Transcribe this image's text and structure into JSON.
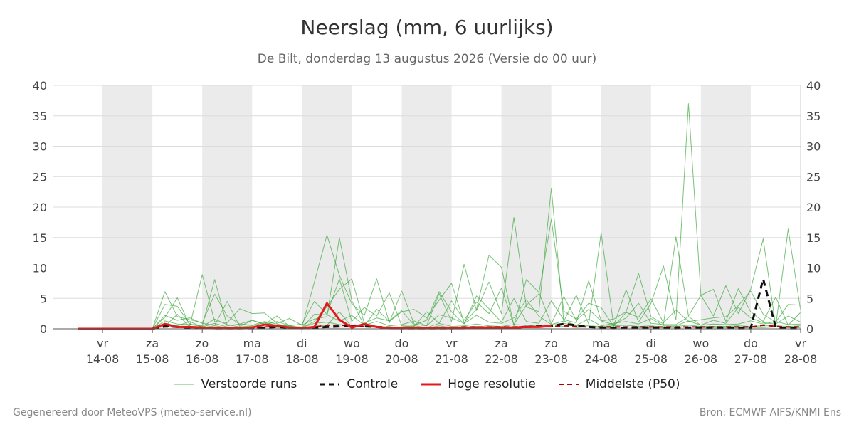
{
  "header": {
    "title": "Neerslag (mm, 6 uurlijks)",
    "subtitle": "De Bilt, donderdag 13 augustus 2026 (Versie do 00 uur)"
  },
  "footer": {
    "left": "Gegenereerd door MeteoVPS (meteo-service.nl)",
    "right": "Bron: ECMWF AIFS/KNMI Ens"
  },
  "legend": {
    "ensemble": "Verstoorde runs",
    "control": "Controle",
    "hires": "Hoge resolutie",
    "median": "Middelste (P50)"
  },
  "colors": {
    "ensemble": "#3fa83f",
    "control": "#111111",
    "hires": "#e31a1c",
    "median": "#b30000",
    "weekend_band": "#ebebeb",
    "grid": "#dcdcdc"
  },
  "chart_data": {
    "type": "line",
    "ylim": [
      0,
      40
    ],
    "yticks": [
      0,
      5,
      10,
      15,
      20,
      25,
      30,
      35,
      40
    ],
    "xlim": [
      "2026-08-13T00",
      "2026-08-28T00"
    ],
    "x_ticks": [
      {
        "day": "vr",
        "date": "14-08"
      },
      {
        "day": "za",
        "date": "15-08"
      },
      {
        "day": "zo",
        "date": "16-08"
      },
      {
        "day": "ma",
        "date": "17-08"
      },
      {
        "day": "di",
        "date": "18-08"
      },
      {
        "day": "wo",
        "date": "19-08"
      },
      {
        "day": "do",
        "date": "20-08"
      },
      {
        "day": "vr",
        "date": "21-08"
      },
      {
        "day": "za",
        "date": "22-08"
      },
      {
        "day": "zo",
        "date": "23-08"
      },
      {
        "day": "ma",
        "date": "24-08"
      },
      {
        "day": "di",
        "date": "25-08"
      },
      {
        "day": "wo",
        "date": "26-08"
      },
      {
        "day": "do",
        "date": "27-08"
      },
      {
        "day": "vr",
        "date": "28-08"
      }
    ],
    "weekend_bands": [
      [
        "2026-08-14T00",
        "2026-08-15T00"
      ],
      [
        "2026-08-16T00",
        "2026-08-17T00"
      ],
      [
        "2026-08-18T00",
        "2026-08-19T00"
      ],
      [
        "2026-08-20T00",
        "2026-08-21T00"
      ],
      [
        "2026-08-22T00",
        "2026-08-23T00"
      ],
      [
        "2026-08-24T00",
        "2026-08-25T00"
      ],
      [
        "2026-08-26T00",
        "2026-08-27T00"
      ]
    ],
    "x": [
      "2026-08-13T12",
      "2026-08-13T18",
      "2026-08-14T00",
      "2026-08-14T06",
      "2026-08-14T12",
      "2026-08-14T18",
      "2026-08-15T00",
      "2026-08-15T06",
      "2026-08-15T12",
      "2026-08-15T18",
      "2026-08-16T00",
      "2026-08-16T06",
      "2026-08-16T12",
      "2026-08-16T18",
      "2026-08-17T00",
      "2026-08-17T06",
      "2026-08-17T12",
      "2026-08-17T18",
      "2026-08-18T00",
      "2026-08-18T06",
      "2026-08-18T12",
      "2026-08-18T18",
      "2026-08-19T00",
      "2026-08-19T06",
      "2026-08-19T12",
      "2026-08-19T18",
      "2026-08-20T00",
      "2026-08-20T06",
      "2026-08-20T12",
      "2026-08-20T18",
      "2026-08-21T00",
      "2026-08-21T06",
      "2026-08-21T12",
      "2026-08-21T18",
      "2026-08-22T00",
      "2026-08-22T06",
      "2026-08-22T12",
      "2026-08-22T18",
      "2026-08-23T00",
      "2026-08-23T06",
      "2026-08-23T12",
      "2026-08-23T18",
      "2026-08-24T00",
      "2026-08-24T06",
      "2026-08-24T12",
      "2026-08-24T18",
      "2026-08-25T00",
      "2026-08-25T06",
      "2026-08-25T12",
      "2026-08-25T18",
      "2026-08-26T00",
      "2026-08-26T06",
      "2026-08-26T12",
      "2026-08-26T18",
      "2026-08-27T00",
      "2026-08-27T06",
      "2026-08-27T12",
      "2026-08-27T18",
      "2026-08-28T00"
    ],
    "series": [
      {
        "name": "Controle",
        "values": [
          0,
          0,
          0,
          0,
          0,
          0,
          0,
          0.5,
          0.3,
          0.2,
          0.2,
          0.1,
          0.1,
          0.1,
          0.1,
          0.2,
          0.3,
          0.2,
          0.1,
          0.2,
          0.3,
          0.4,
          0.6,
          0.4,
          0.3,
          0.2,
          0.1,
          0.1,
          0.1,
          0.1,
          0.1,
          0.2,
          0.2,
          0.2,
          0.2,
          0.2,
          0.3,
          0.4,
          0.5,
          0.8,
          0.6,
          0.3,
          0.2,
          0.1,
          0.2,
          0.2,
          0.2,
          0.2,
          0.1,
          0.2,
          0.2,
          0.2,
          0.2,
          0.1,
          0.1,
          8.2,
          0.2,
          0.1,
          0.1
        ]
      },
      {
        "name": "Hoge resolutie",
        "values": [
          0,
          0,
          0,
          0,
          0,
          0,
          0,
          0.8,
          0.3,
          0.3,
          0.2,
          0.1,
          0.1,
          0.1,
          0.2,
          0.7,
          0.5,
          0.2,
          0.1,
          0.3,
          4.2,
          1.5,
          0.2,
          0.8,
          0.3,
          0.1,
          0.1,
          0.1,
          0.1,
          0.1,
          0.1,
          0.1,
          0.2,
          0.2,
          0.2,
          0.2,
          0.3,
          0.3,
          0.5,
          null,
          null,
          null,
          null,
          null,
          null,
          null,
          null,
          null,
          null,
          null,
          null,
          null,
          null,
          null,
          null,
          null,
          null,
          null,
          null
        ]
      },
      {
        "name": "Middelste (P50)",
        "values": [
          0,
          0,
          0,
          0,
          0,
          0,
          0,
          0.3,
          0.3,
          0.2,
          0.2,
          0.1,
          0.1,
          0.1,
          0.1,
          0.3,
          0.4,
          0.2,
          0.1,
          0.3,
          0.6,
          0.6,
          0.5,
          0.4,
          0.3,
          0.2,
          0.2,
          0.2,
          0.2,
          0.2,
          0.2,
          0.3,
          0.3,
          0.3,
          0.3,
          0.3,
          0.4,
          0.4,
          0.4,
          0.5,
          0.4,
          0.3,
          0.3,
          0.3,
          0.3,
          0.3,
          0.3,
          0.3,
          0.3,
          0.3,
          0.3,
          0.3,
          0.3,
          0.3,
          0.3,
          0.6,
          0.4,
          0.3,
          0.3
        ]
      },
      {
        "name": "Verstoorde runs",
        "values": [
          0,
          0,
          0,
          0,
          0,
          0,
          0,
          6.1,
          2.0,
          1.5,
          1.0,
          5.7,
          2.1,
          0.8,
          0.6,
          1.2,
          0.8,
          0.4,
          0.3,
          7.7,
          15.4,
          8.8,
          4.1,
          2.2,
          8.2,
          1.0,
          6.2,
          0.8,
          0.5,
          5.8,
          1.2,
          10.6,
          3.0,
          7.7,
          2.5,
          18.3,
          3.6,
          2.8,
          23.1,
          1.2,
          5.5,
          0.8,
          15.8,
          0.5,
          6.4,
          1.1,
          4.2,
          10.3,
          1.5,
          37.0,
          5.5,
          2.1,
          7.1,
          2.5,
          6.5,
          14.8,
          0.4,
          16.4,
          3.0
        ]
      },
      {
        "values": [
          0,
          0,
          0,
          0,
          0,
          0,
          0,
          1.9,
          5.1,
          0.5,
          8.9,
          1.2,
          1.0,
          3.3,
          2.5,
          2.6,
          0.9,
          1.7,
          0.6,
          1.6,
          2.0,
          15.0,
          4.6,
          0.5,
          3.2,
          1.2,
          2.8,
          3.2,
          1.8,
          4.7,
          7.5,
          1.0,
          3.2,
          12.1,
          10.1,
          0.5,
          8.1,
          6.0,
          0.8,
          5.3,
          1.4,
          3.2,
          1.3,
          1.6,
          2.8,
          9.1,
          2.0,
          0.8,
          15.1,
          2.1,
          5.5,
          6.5,
          1.2,
          6.6,
          2.8,
          1.2,
          5.2,
          0.6,
          2.7
        ]
      },
      {
        "values": [
          0,
          0,
          0,
          0,
          0,
          0,
          0,
          4.0,
          3.7,
          0.8,
          0.5,
          8.1,
          0.5,
          0.8,
          1.4,
          0.7,
          1.2,
          0.5,
          0.8,
          4.5,
          2.4,
          8.2,
          1.2,
          3.5,
          2.1,
          5.9,
          0.5,
          0.4,
          2.8,
          0.9,
          4.6,
          1.4,
          4.4,
          2.5,
          6.7,
          0.7,
          3.9,
          5.7,
          18.0,
          2.9,
          1.6,
          4.2,
          3.5,
          0.4,
          2.7,
          1.9,
          4.9,
          1.0,
          3.1,
          1.2,
          1.5,
          1.8,
          2.0,
          3.8,
          6.2,
          2.4,
          1.1,
          4.0,
          3.9
        ]
      },
      {
        "values": [
          0,
          0,
          0,
          0,
          0,
          0,
          0,
          2.2,
          1.4,
          1.8,
          0.9,
          0.6,
          4.5,
          0.4,
          1.4,
          0.8,
          2.1,
          0.4,
          0.2,
          1.2,
          3.6,
          6.5,
          8.2,
          0.9,
          1.8,
          1.3,
          3.0,
          0.6,
          1.4,
          6.1,
          2.8,
          0.8,
          5.4,
          3.3,
          1.1,
          5.0,
          1.2,
          0.9,
          4.6,
          1.5,
          1.0,
          7.9,
          1.3,
          0.7,
          1.8,
          4.2,
          0.9,
          0.7,
          0.7,
          2.0,
          0.6,
          1.4,
          0.9,
          3.5,
          1.8,
          1.0,
          0.8,
          2.1,
          1.1
        ]
      },
      {
        "values": [
          0,
          0,
          0,
          0,
          0,
          0,
          0,
          1.3,
          0.8,
          0.7,
          0.4,
          1.6,
          0.7,
          0.3,
          0.5,
          1.0,
          0.6,
          0.5,
          0.2,
          2.4,
          2.3,
          1.3,
          2.2,
          0.6,
          1.2,
          0.5,
          0.7,
          1.3,
          0.5,
          2.3,
          1.8,
          0.9,
          2.2,
          1.1,
          0.9,
          1.8,
          4.8,
          2.1,
          0.7,
          1.3,
          0.6,
          1.6,
          0.5,
          0.9,
          1.2,
          0.8,
          1.7,
          0.5,
          0.5,
          1.3,
          0.6,
          0.8,
          0.7,
          0.8,
          1.3,
          0.8,
          1.2,
          0.7,
          0.8
        ]
      },
      {
        "values": [
          0,
          0,
          0,
          0,
          0,
          0,
          0,
          0.9,
          0.5,
          1.2,
          0.3,
          0.9,
          0.3,
          0.2,
          0.4,
          0.6,
          0.4,
          0.2,
          0.2,
          0.9,
          1.1,
          0.7,
          0.5,
          0.8,
          0.4,
          0.3,
          0.3,
          0.5,
          0.2,
          0.9,
          0.4,
          0.5,
          0.8,
          0.5,
          0.4,
          0.7,
          0.6,
          0.6,
          0.6,
          0.9,
          0.5,
          0.5,
          0.4,
          0.5,
          0.6,
          0.4,
          0.5,
          0.3,
          0.4,
          0.6,
          0.4,
          0.4,
          0.4,
          0.5,
          0.4,
          0.5,
          0.5,
          0.4,
          0.5
        ]
      },
      {
        "values": [
          0,
          0,
          0,
          0,
          0,
          0,
          0,
          0.4,
          2.4,
          0.3,
          0.2,
          0.5,
          0.2,
          0.1,
          0.2,
          0.3,
          0.2,
          0.1,
          0.1,
          0.4,
          0.6,
          2.8,
          0.3,
          0.4,
          0.2,
          0.2,
          0.1,
          0.2,
          0.1,
          0.5,
          0.2,
          0.3,
          0.4,
          0.3,
          0.2,
          0.3,
          0.3,
          0.3,
          0.3,
          0.4,
          0.2,
          0.3,
          0.2,
          0.2,
          0.3,
          0.2,
          0.2,
          0.2,
          0.2,
          0.3,
          0.2,
          0.2,
          0.2,
          0.2,
          0.2,
          0.2,
          0.3,
          0.2,
          0.2
        ]
      }
    ]
  }
}
